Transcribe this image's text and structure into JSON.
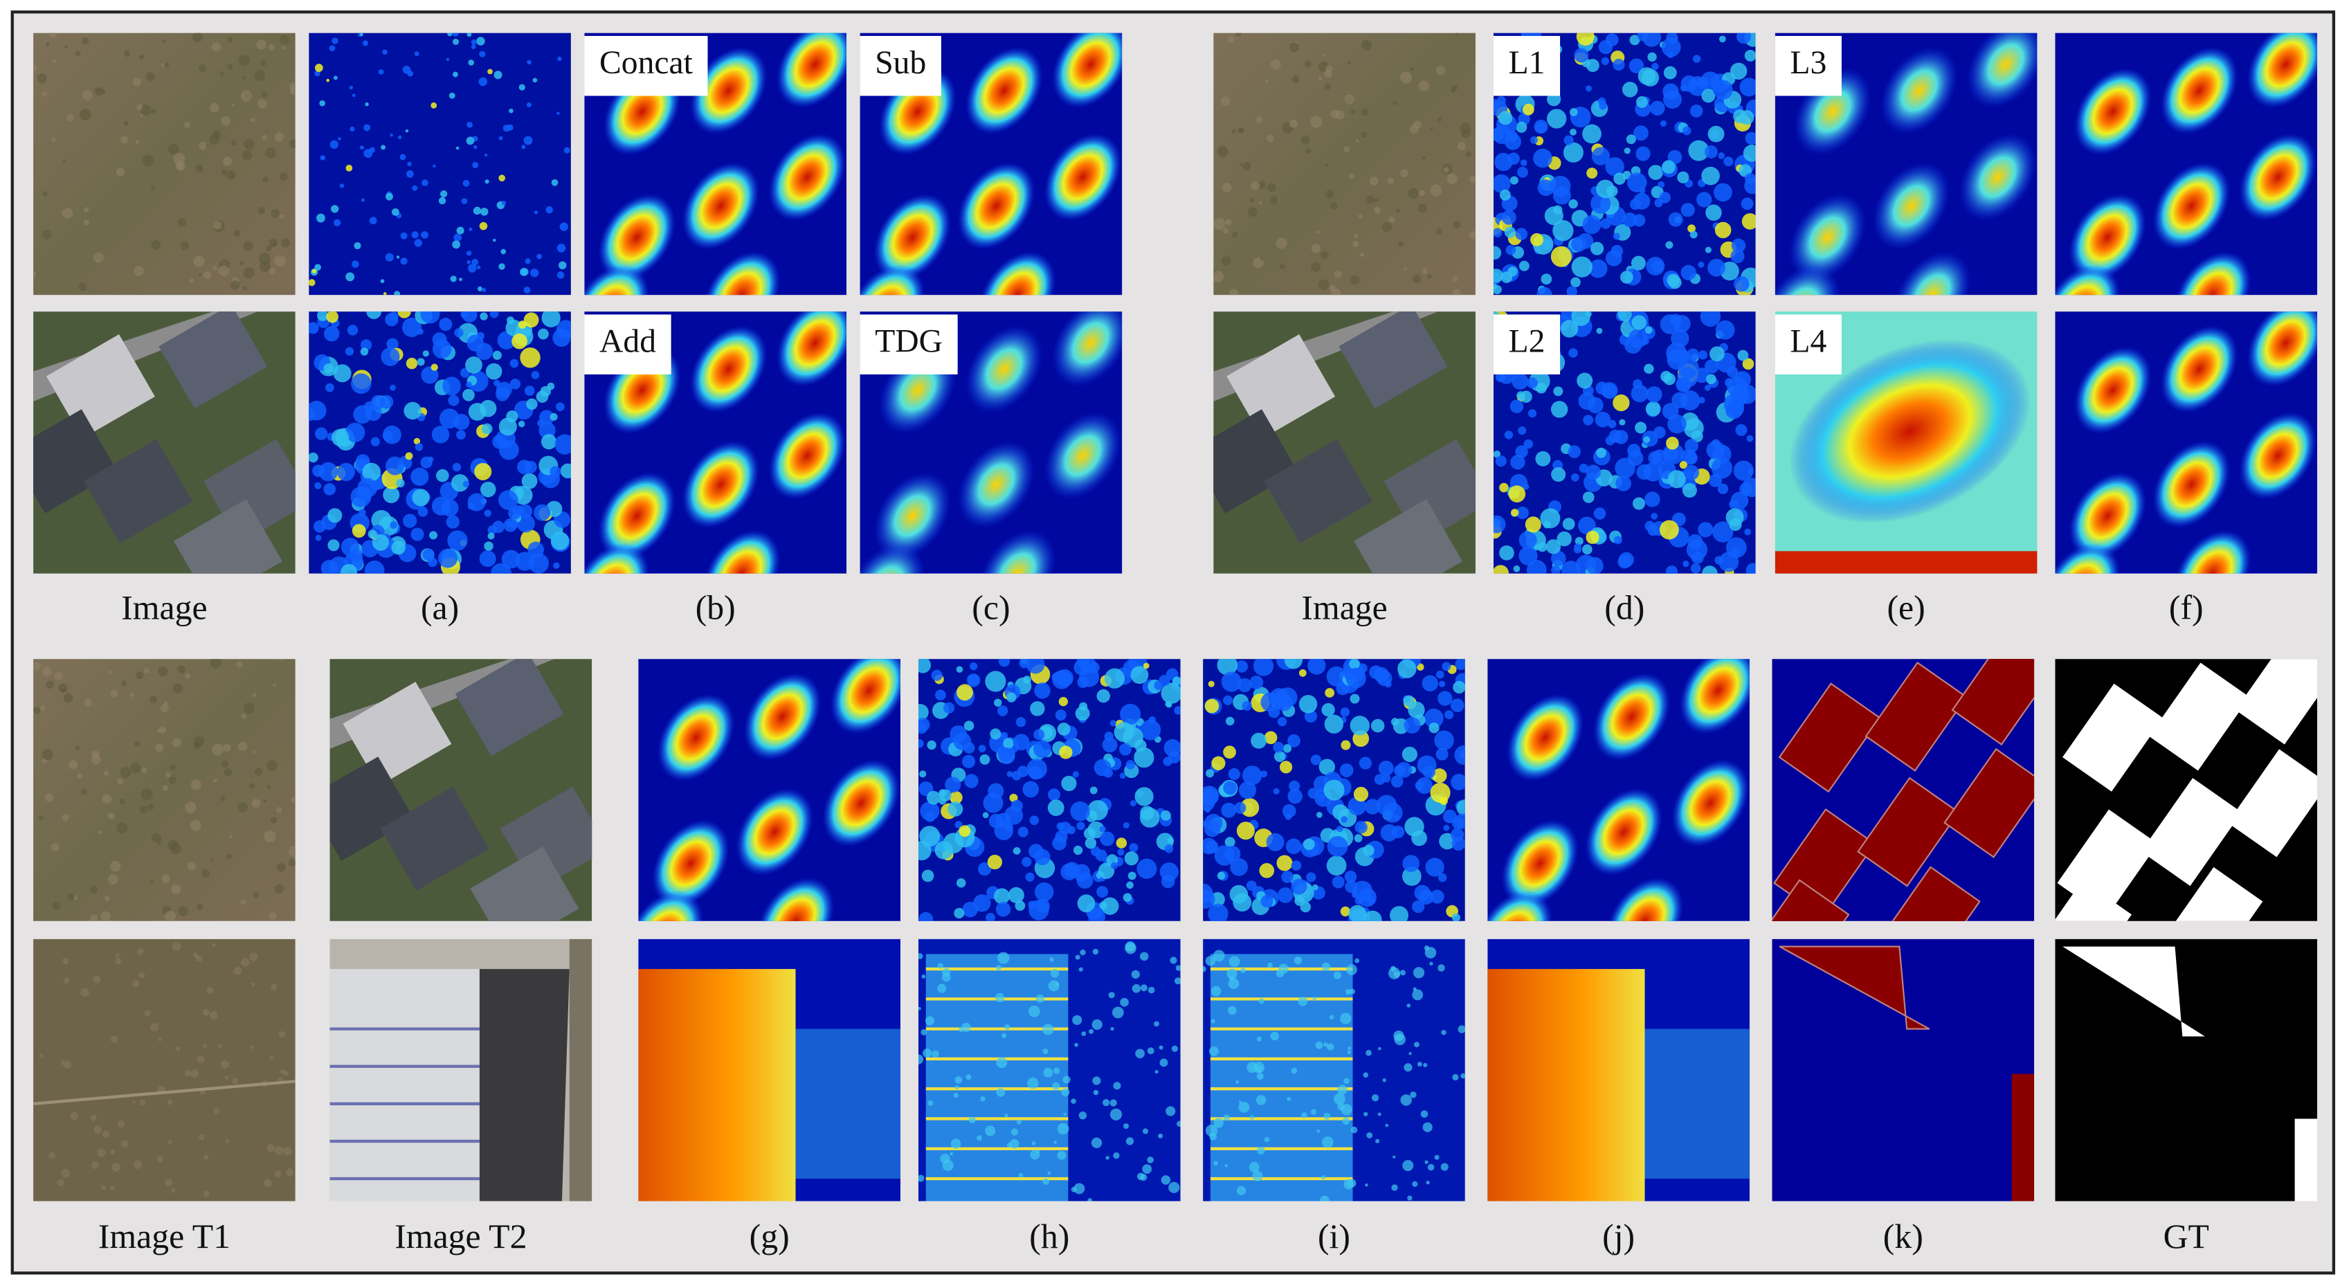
{
  "top_left": {
    "captions": [
      "Image",
      "(a)",
      "(b)",
      "(c)"
    ],
    "overlays": [
      "Concat",
      "Sub",
      "Add",
      "TDG"
    ]
  },
  "top_right": {
    "captions": [
      "Image",
      "(d)",
      "(e)",
      "(f)"
    ],
    "overlays": [
      "L1",
      "L3",
      "L2",
      "L4"
    ]
  },
  "bottom": {
    "captions": [
      "Image T1",
      "Image T2",
      "(g)",
      "(h)",
      "(i)",
      "(j)",
      "(k)",
      "GT"
    ]
  }
}
